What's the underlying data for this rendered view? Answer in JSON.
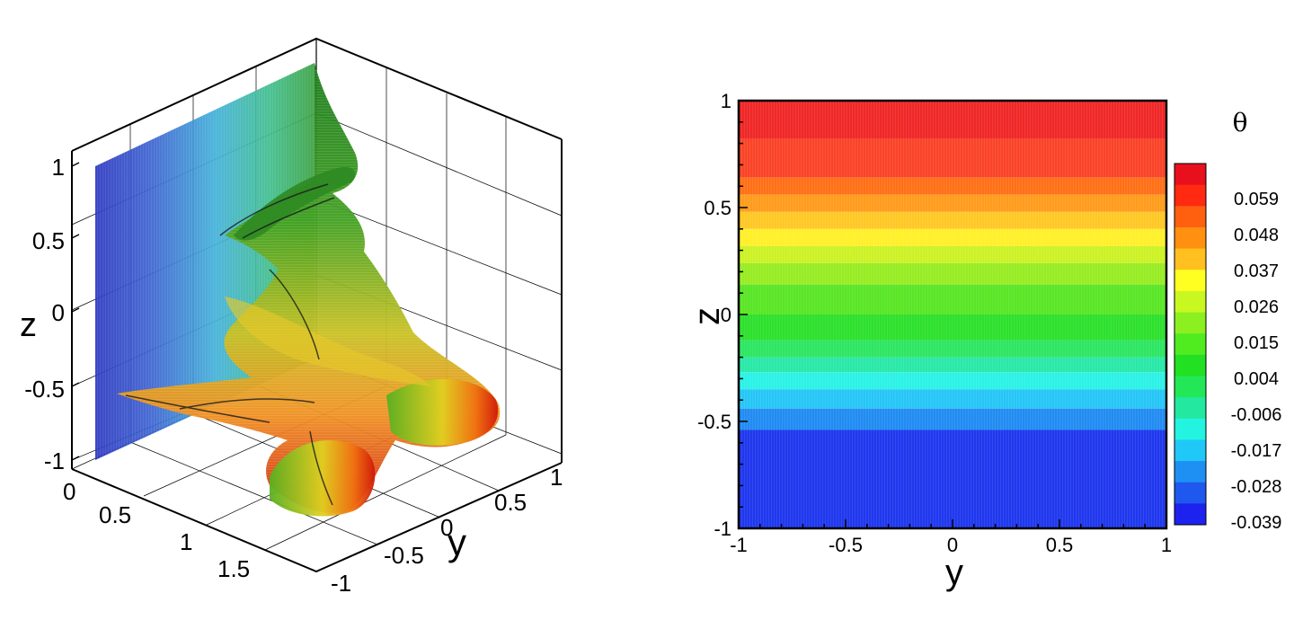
{
  "chart_data": [
    {
      "type": "surface",
      "axes": {
        "x": {
          "ticks": [
            "0",
            "0.5",
            "1",
            "1.5"
          ],
          "label": ""
        },
        "y": {
          "ticks": [
            "-1",
            "-0.5",
            "0",
            "0.5",
            "1"
          ],
          "label": "y"
        },
        "z": {
          "ticks": [
            "-1",
            "-0.5",
            "0",
            "0.5",
            "1"
          ],
          "label": "z"
        }
      },
      "colormap": "rainbow (blue to red)"
    },
    {
      "type": "heatmap",
      "xlabel": "y",
      "ylabel": "z",
      "xlim": [
        -1,
        1
      ],
      "ylim": [
        -1,
        1
      ],
      "x_ticks": [
        "-1",
        "-0.5",
        "0",
        "0.5",
        "1"
      ],
      "y_ticks": [
        "-1",
        "-0.5",
        "0",
        "0.5",
        "1"
      ],
      "colorbar": {
        "title": "θ",
        "levels": [
          "0.059",
          "0.048",
          "0.037",
          "0.026",
          "0.015",
          "0.004",
          "-0.006",
          "-0.017",
          "-0.028",
          "-0.039"
        ],
        "level_values": [
          0.059,
          0.048,
          0.037,
          0.026,
          0.015,
          0.004,
          -0.006,
          -0.017,
          -0.028,
          -0.039
        ],
        "colors": [
          "#e8101c",
          "#ff2a10",
          "#ff6010",
          "#ff9010",
          "#ffc020",
          "#ffff22",
          "#c8f820",
          "#8cf020",
          "#50ec20",
          "#22e022",
          "#22e858",
          "#22e8a0",
          "#22f4e0",
          "#20c8f8",
          "#1e90f4",
          "#1e58ee",
          "#1e22ee"
        ]
      },
      "bands": [
        {
          "z_top": 1.0,
          "z_bot": 0.82,
          "color": "#f02828"
        },
        {
          "z_top": 0.82,
          "z_bot": 0.64,
          "color": "#fa4428"
        },
        {
          "z_top": 0.64,
          "z_bot": 0.56,
          "color": "#ff7018"
        },
        {
          "z_top": 0.56,
          "z_bot": 0.48,
          "color": "#ff9c1c"
        },
        {
          "z_top": 0.48,
          "z_bot": 0.4,
          "color": "#ffc826"
        },
        {
          "z_top": 0.4,
          "z_bot": 0.32,
          "color": "#fff02a"
        },
        {
          "z_top": 0.32,
          "z_bot": 0.24,
          "color": "#cdf226"
        },
        {
          "z_top": 0.24,
          "z_bot": 0.14,
          "color": "#98ec24"
        },
        {
          "z_top": 0.14,
          "z_bot": 0.0,
          "color": "#5ae626"
        },
        {
          "z_top": 0.0,
          "z_bot": -0.12,
          "color": "#2ee02e"
        },
        {
          "z_top": -0.12,
          "z_bot": -0.2,
          "color": "#2ee662"
        },
        {
          "z_top": -0.2,
          "z_bot": -0.27,
          "color": "#2ae8a8"
        },
        {
          "z_top": -0.27,
          "z_bot": -0.35,
          "color": "#2cf2e6"
        },
        {
          "z_top": -0.35,
          "z_bot": -0.44,
          "color": "#26c6f6"
        },
        {
          "z_top": -0.44,
          "z_bot": -0.54,
          "color": "#228cf2"
        },
        {
          "z_top": -0.54,
          "z_bot": -1.0,
          "color": "#2038ee"
        }
      ]
    }
  ]
}
